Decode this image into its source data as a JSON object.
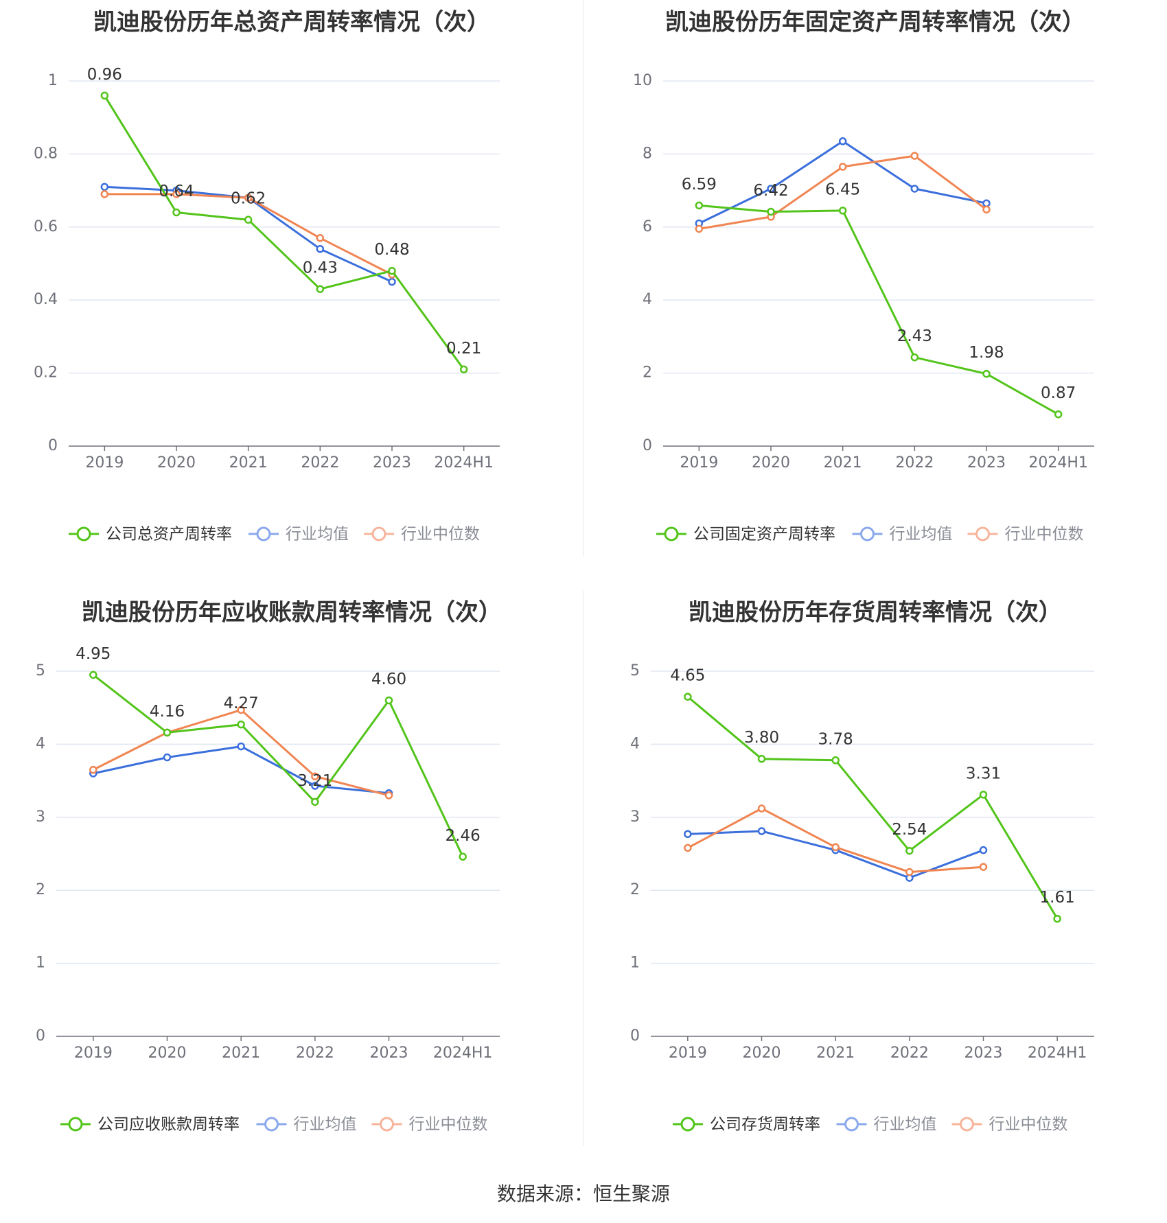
{
  "source_text": "数据来源：恒生聚源",
  "colors": {
    "company": "#52c41a",
    "industry_mean": "#3b6fdc",
    "industry_median": "#f08552",
    "legend_mean_faded": "#8aa8ec",
    "legend_median_faded": "#f7b49a"
  },
  "charts": [
    {
      "chart_data": {
        "type": "line",
        "title": "凯迪股份历年总资产周转率情况（次）",
        "categories": [
          "2019",
          "2020",
          "2021",
          "2022",
          "2023",
          "2024H1"
        ],
        "ylim": [
          0,
          1
        ],
        "yticks": [
          0,
          0.2,
          0.4,
          0.6,
          0.8,
          1
        ],
        "ytick_labels": [
          "0",
          "0.2",
          "0.4",
          "0.6",
          "0.8",
          "1"
        ],
        "grid": true,
        "legend_position": "bottom",
        "series": [
          {
            "name": "公司总资产周转率",
            "values": [
              0.96,
              0.64,
              0.62,
              0.43,
              0.48,
              0.21
            ],
            "labels": [
              "0.96",
              "0.64",
              "0.62",
              "0.43",
              "0.48",
              "0.21"
            ]
          },
          {
            "name": "行业均值",
            "values": [
              0.71,
              0.7,
              0.68,
              0.54,
              0.45,
              null
            ]
          },
          {
            "name": "行业中位数",
            "values": [
              0.69,
              0.69,
              0.68,
              0.57,
              0.47,
              null
            ]
          }
        ]
      }
    },
    {
      "chart_data": {
        "type": "line",
        "title": "凯迪股份历年固定资产周转率情况（次）",
        "categories": [
          "2019",
          "2020",
          "2021",
          "2022",
          "2023",
          "2024H1"
        ],
        "ylim": [
          0,
          10
        ],
        "yticks": [
          0,
          2,
          4,
          6,
          8,
          10
        ],
        "ytick_labels": [
          "0",
          "2",
          "4",
          "6",
          "8",
          "10"
        ],
        "grid": true,
        "legend_position": "bottom",
        "series": [
          {
            "name": "公司固定资产周转率",
            "values": [
              6.59,
              6.42,
              6.45,
              2.43,
              1.98,
              0.87
            ],
            "labels": [
              "6.59",
              "6.42",
              "6.45",
              "2.43",
              "1.98",
              "0.87"
            ]
          },
          {
            "name": "行业均值",
            "values": [
              6.1,
              7.05,
              8.35,
              7.05,
              6.65,
              null
            ]
          },
          {
            "name": "行业中位数",
            "values": [
              5.95,
              6.28,
              7.65,
              7.95,
              6.48,
              null
            ]
          }
        ]
      }
    },
    {
      "chart_data": {
        "type": "line",
        "title": "凯迪股份历年应收账款周转率情况（次）",
        "categories": [
          "2019",
          "2020",
          "2021",
          "2022",
          "2023",
          "2024H1"
        ],
        "ylim": [
          0,
          5
        ],
        "yticks": [
          0,
          1,
          2,
          3,
          4,
          5
        ],
        "ytick_labels": [
          "0",
          "1",
          "2",
          "3",
          "4",
          "5"
        ],
        "grid": true,
        "legend_position": "bottom",
        "series": [
          {
            "name": "公司应收账款周转率",
            "values": [
              4.95,
              4.16,
              4.27,
              3.21,
              4.6,
              2.46
            ],
            "labels": [
              "4.95",
              "4.16",
              "4.27",
              "3.21",
              "4.60",
              "2.46"
            ]
          },
          {
            "name": "行业均值",
            "values": [
              3.6,
              3.82,
              3.97,
              3.43,
              3.33,
              null
            ]
          },
          {
            "name": "行业中位数",
            "values": [
              3.65,
              4.16,
              4.47,
              3.56,
              3.3,
              null
            ]
          }
        ]
      }
    },
    {
      "chart_data": {
        "type": "line",
        "title": "凯迪股份历年存货周转率情况（次）",
        "categories": [
          "2019",
          "2020",
          "2021",
          "2022",
          "2023",
          "2024H1"
        ],
        "ylim": [
          0,
          5
        ],
        "yticks": [
          0,
          1,
          2,
          3,
          4,
          5
        ],
        "ytick_labels": [
          "0",
          "1",
          "2",
          "3",
          "4",
          "5"
        ],
        "grid": true,
        "legend_position": "bottom",
        "series": [
          {
            "name": "公司存货周转率",
            "values": [
              4.65,
              3.8,
              3.78,
              2.54,
              3.31,
              1.61
            ],
            "labels": [
              "4.65",
              "3.80",
              "3.78",
              "2.54",
              "3.31",
              "1.61"
            ]
          },
          {
            "name": "行业均值",
            "values": [
              2.77,
              2.81,
              2.55,
              2.17,
              2.55,
              null
            ]
          },
          {
            "name": "行业中位数",
            "values": [
              2.58,
              3.12,
              2.59,
              2.25,
              2.32,
              null
            ]
          }
        ]
      }
    }
  ]
}
